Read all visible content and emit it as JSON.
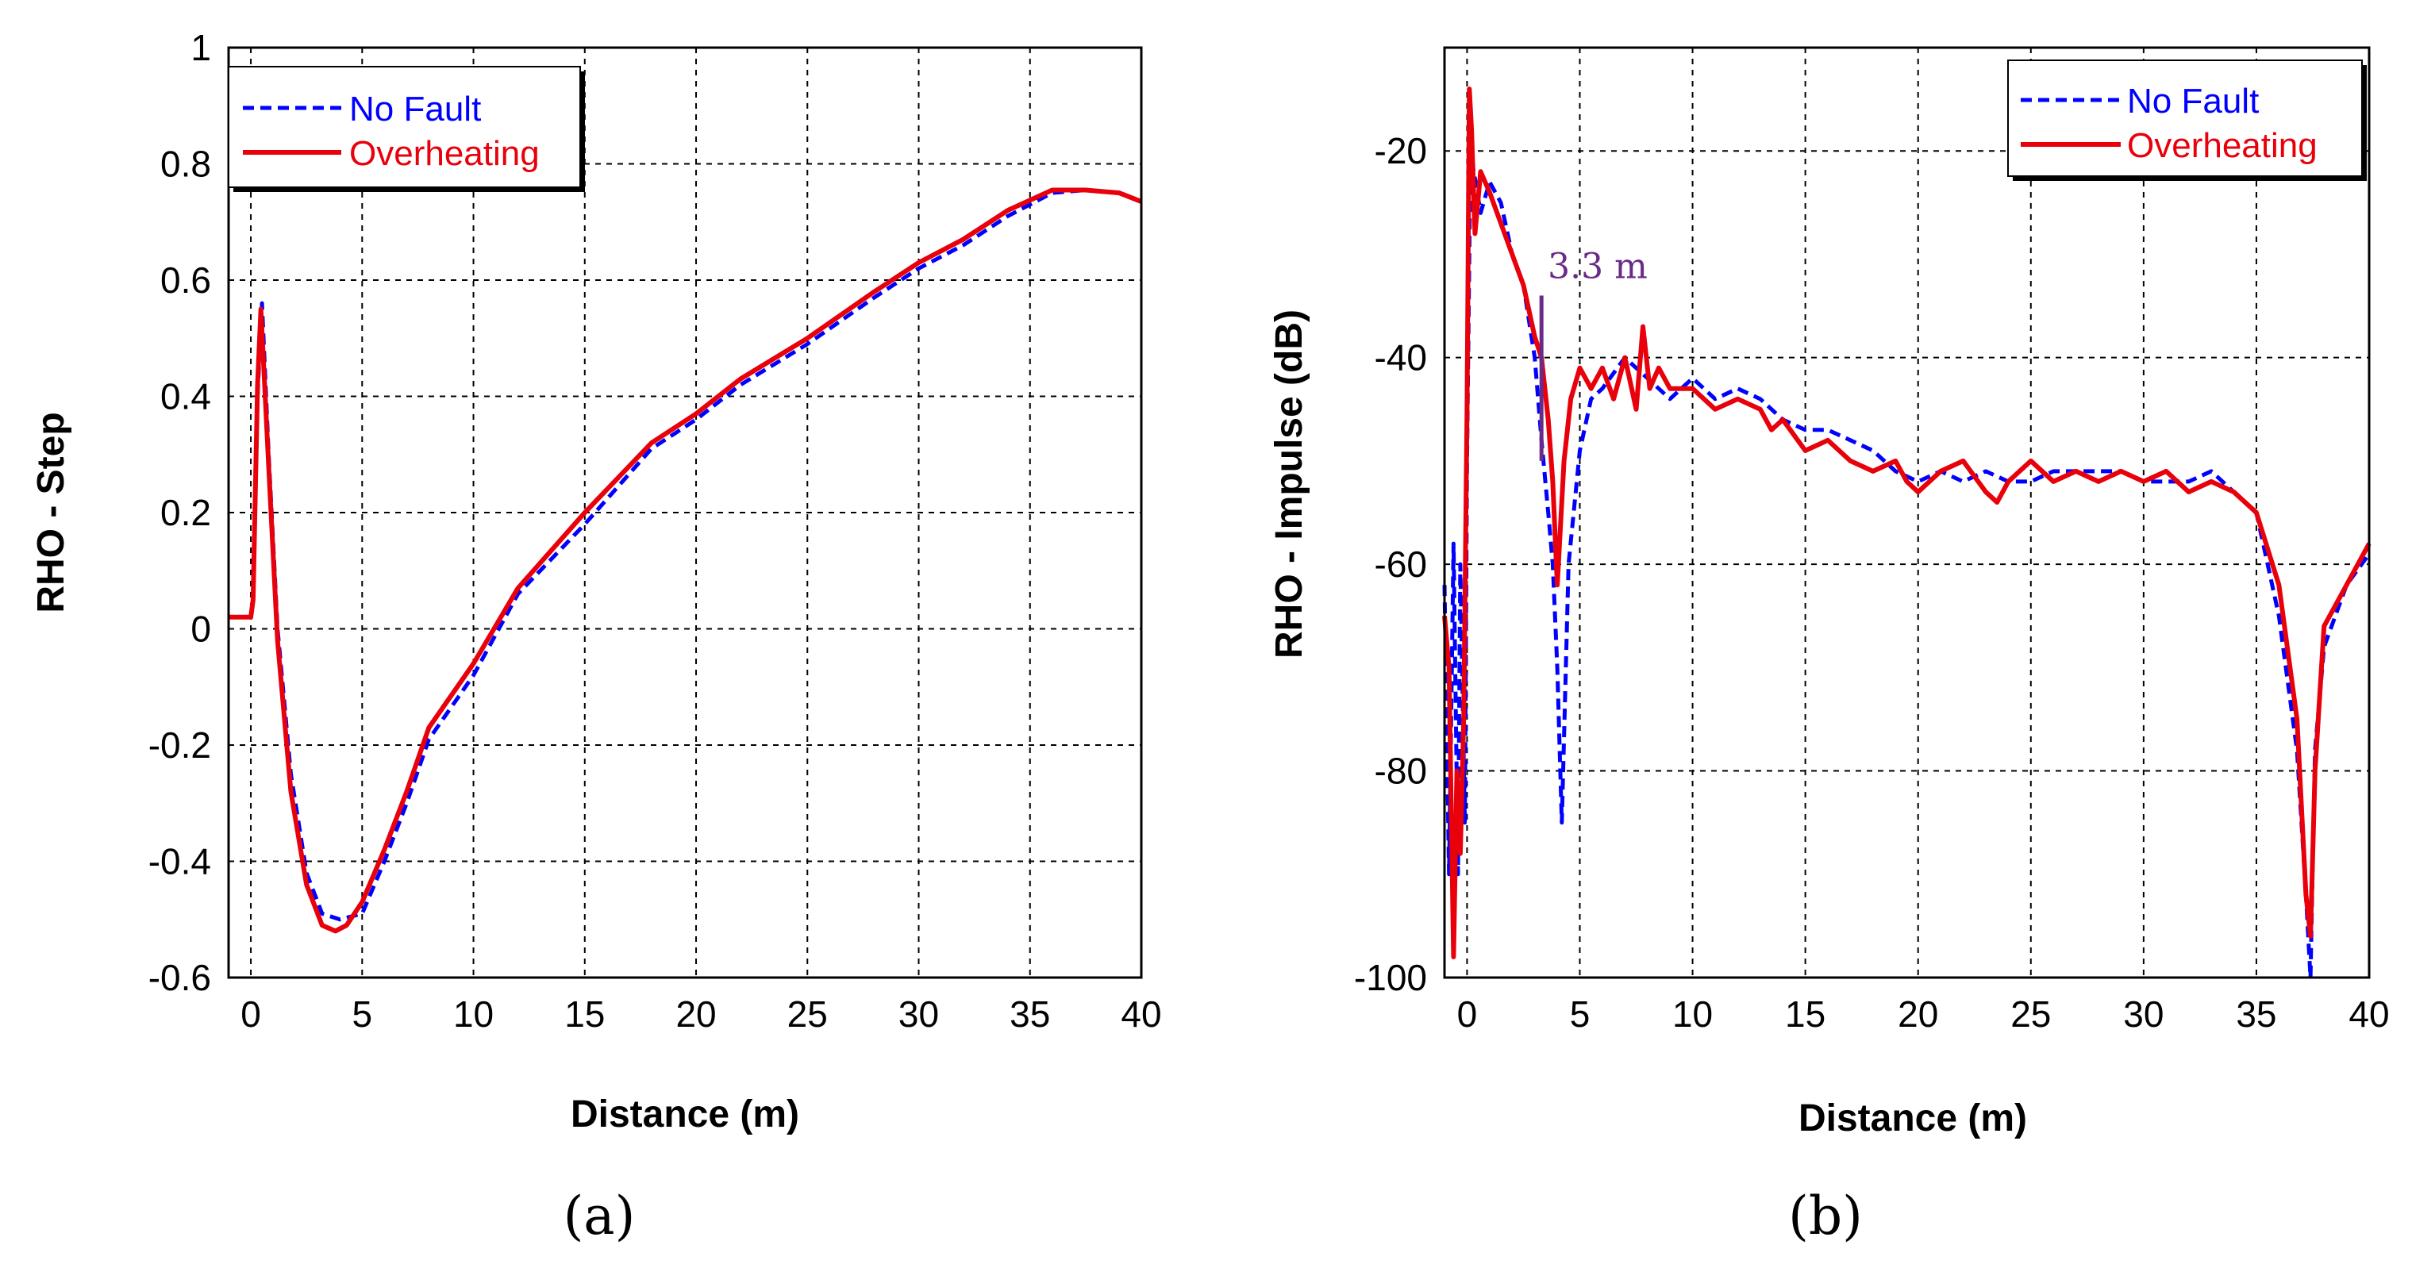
{
  "chart_data": [
    {
      "id": "a",
      "type": "line",
      "caption": "(a)",
      "xlabel": "Distance (m)",
      "ylabel": "RHO - Step",
      "xlim": [
        -1,
        40
      ],
      "ylim": [
        -0.6,
        1
      ],
      "xticks": [
        0,
        5,
        10,
        15,
        20,
        25,
        30,
        35,
        40
      ],
      "yticks": [
        -0.6,
        -0.4,
        -0.2,
        0,
        0.2,
        0.4,
        0.6,
        0.8,
        1
      ],
      "ytick_labels": [
        "-0.6",
        "-0.4",
        "-0.2",
        "0",
        "0.2",
        "0.4",
        "0.6",
        "0.8",
        "1"
      ],
      "grid": true,
      "legend_position": "top-left",
      "series": [
        {
          "name": "No Fault",
          "color": "#0000ff",
          "style": "dashed",
          "x": [
            -1,
            0,
            0.1,
            0.3,
            0.5,
            0.8,
            1.2,
            1.8,
            2.5,
            3.2,
            4.0,
            5.0,
            6.0,
            7.0,
            8.0,
            10.0,
            12.0,
            15.0,
            18.0,
            20.0,
            22.0,
            25.0,
            28.0,
            30.0,
            32.0,
            34.0,
            36.0,
            37.5,
            39.0,
            40.0
          ],
          "y": [
            0.02,
            0.02,
            0.05,
            0.4,
            0.56,
            0.3,
            0.0,
            -0.25,
            -0.42,
            -0.49,
            -0.5,
            -0.49,
            -0.4,
            -0.3,
            -0.19,
            -0.08,
            0.06,
            0.18,
            0.31,
            0.36,
            0.42,
            0.49,
            0.57,
            0.62,
            0.66,
            0.71,
            0.75,
            0.755,
            0.75,
            0.735
          ]
        },
        {
          "name": "Overheating",
          "color": "#e8000b",
          "style": "solid",
          "x": [
            -1,
            0,
            0.1,
            0.3,
            0.45,
            0.8,
            1.2,
            1.8,
            2.5,
            3.2,
            3.8,
            4.3,
            5.0,
            6.0,
            7.0,
            8.0,
            10.0,
            12.0,
            15.0,
            18.0,
            20.0,
            22.0,
            25.0,
            28.0,
            30.0,
            32.0,
            34.0,
            36.0,
            37.5,
            39.0,
            40.0
          ],
          "y": [
            0.02,
            0.02,
            0.05,
            0.42,
            0.55,
            0.28,
            -0.02,
            -0.28,
            -0.44,
            -0.51,
            -0.52,
            -0.51,
            -0.47,
            -0.38,
            -0.28,
            -0.17,
            -0.06,
            0.07,
            0.2,
            0.32,
            0.37,
            0.43,
            0.5,
            0.58,
            0.63,
            0.67,
            0.72,
            0.755,
            0.755,
            0.75,
            0.735
          ]
        }
      ]
    },
    {
      "id": "b",
      "type": "line",
      "caption": "(b)",
      "xlabel": "Distance (m)",
      "ylabel": "RHO - Impulse (dB)",
      "xlim": [
        -1,
        40
      ],
      "ylim": [
        -100,
        -10
      ],
      "xticks": [
        0,
        5,
        10,
        15,
        20,
        25,
        30,
        35,
        40
      ],
      "yticks": [
        -100,
        -80,
        -60,
        -40,
        -20
      ],
      "ytick_labels": [
        "-100",
        "-80",
        "-60",
        "-40",
        "-20"
      ],
      "grid": true,
      "legend_position": "top-right",
      "annotation": {
        "text": "3.3 m",
        "x": 3.3,
        "y_from": -50,
        "y_to": -34,
        "color": "#6a2a8a"
      },
      "series": [
        {
          "name": "No Fault",
          "color": "#0000ff",
          "style": "dashed",
          "x": [
            -1,
            -0.8,
            -0.6,
            -0.4,
            -0.3,
            -0.1,
            0.0,
            0.15,
            0.3,
            0.6,
            1.0,
            1.5,
            2.0,
            2.5,
            3.0,
            3.3,
            3.6,
            3.8,
            4.0,
            4.2,
            4.5,
            5.0,
            5.5,
            6.0,
            7.0,
            8.0,
            9.0,
            10.0,
            11.0,
            12.0,
            13.0,
            14.0,
            15.0,
            16.0,
            17.0,
            18.0,
            19.0,
            20.0,
            21.0,
            22.0,
            23.0,
            24.0,
            25.0,
            26.0,
            27.0,
            28.0,
            29.0,
            30.0,
            31.0,
            32.0,
            33.0,
            34.0,
            35.0,
            36.0,
            36.8,
            37.2,
            37.4,
            37.6,
            38.0,
            39.0,
            40.0
          ],
          "y": [
            -62,
            -90,
            -58,
            -90,
            -60,
            -85,
            -50,
            -20,
            -22,
            -26,
            -23,
            -25,
            -30,
            -33,
            -40,
            -48,
            -55,
            -60,
            -70,
            -85,
            -60,
            -49,
            -44,
            -43,
            -40,
            -42,
            -44,
            -42,
            -44,
            -43,
            -44,
            -46,
            -47,
            -47,
            -48,
            -49,
            -51,
            -52,
            -51,
            -52,
            -51,
            -52,
            -52,
            -51,
            -51,
            -51,
            -51,
            -52,
            -52,
            -52,
            -51,
            -53,
            -55,
            -65,
            -78,
            -92,
            -100,
            -78,
            -68,
            -62,
            -59
          ]
        },
        {
          "name": "Overheating",
          "color": "#e8000b",
          "style": "solid",
          "x": [
            -1,
            -0.8,
            -0.6,
            -0.45,
            -0.3,
            -0.15,
            0.0,
            0.1,
            0.2,
            0.35,
            0.6,
            1.0,
            1.5,
            2.0,
            2.5,
            3.0,
            3.3,
            3.6,
            3.8,
            4.0,
            4.3,
            4.6,
            5.0,
            5.5,
            6.0,
            6.5,
            7.0,
            7.5,
            7.8,
            8.1,
            8.5,
            9.0,
            10.0,
            11.0,
            12.0,
            13.0,
            13.5,
            14.0,
            15.0,
            16.0,
            17.0,
            18.0,
            19.0,
            19.5,
            20.0,
            21.0,
            22.0,
            23.0,
            23.5,
            24.0,
            25.0,
            26.0,
            27.0,
            28.0,
            29.0,
            30.0,
            31.0,
            32.0,
            33.0,
            34.0,
            35.0,
            36.0,
            36.8,
            37.2,
            37.4,
            37.6,
            38.0,
            39.0,
            40.0
          ],
          "y": [
            -65,
            -70,
            -98,
            -80,
            -88,
            -75,
            -45,
            -14,
            -18,
            -28,
            -22,
            -24,
            -27,
            -30,
            -33,
            -38,
            -40,
            -46,
            -52,
            -62,
            -50,
            -44,
            -41,
            -43,
            -41,
            -44,
            -40,
            -45,
            -37,
            -43,
            -41,
            -43,
            -43,
            -45,
            -44,
            -45,
            -47,
            -46,
            -49,
            -48,
            -50,
            -51,
            -50,
            -52,
            -53,
            -51,
            -50,
            -53,
            -54,
            -52,
            -50,
            -52,
            -51,
            -52,
            -51,
            -52,
            -51,
            -53,
            -52,
            -53,
            -55,
            -62,
            -75,
            -92,
            -96,
            -80,
            -66,
            -62,
            -58
          ]
        }
      ]
    }
  ]
}
